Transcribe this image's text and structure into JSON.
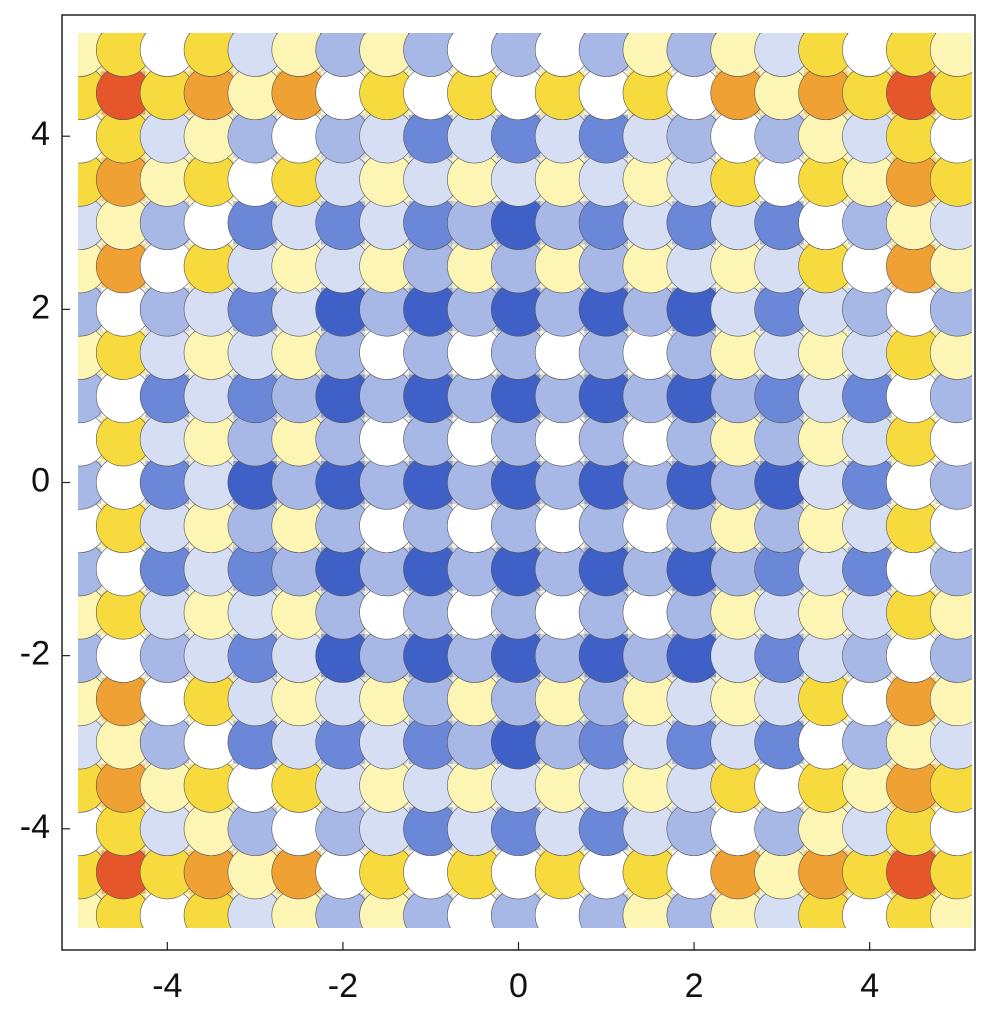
{
  "chart_data": {
    "type": "contour",
    "x": [
      -5,
      -4.5,
      -4,
      -3.5,
      -3,
      -2.5,
      -2,
      -1.5,
      -1,
      -0.5,
      0,
      0.5,
      1,
      1.5,
      2,
      2.5,
      3,
      3.5,
      4,
      4.5,
      5
    ],
    "y": [
      -5,
      -4.5,
      -4,
      -3.5,
      -3,
      -2.5,
      -2,
      -1.5,
      -1,
      -0.5,
      0,
      0.5,
      1,
      1.5,
      2,
      2.5,
      3,
      3.5,
      4,
      4.5,
      5
    ],
    "z": [
      [
        50,
        65.25,
        41,
        57.25,
        34,
        51.25,
        29,
        47.25,
        26,
        45.25,
        25,
        45.25,
        26,
        47.25,
        29,
        51.25,
        34,
        57.25,
        41,
        65.25,
        50
      ],
      [
        65.25,
        80.5,
        56.25,
        72.5,
        49.25,
        66.5,
        44.25,
        62.5,
        41.25,
        60.5,
        40.25,
        60.5,
        41.25,
        62.5,
        44.25,
        66.5,
        49.25,
        72.5,
        56.25,
        80.5,
        65.25
      ],
      [
        41,
        56.25,
        32,
        48.25,
        25,
        42.25,
        20,
        38.25,
        17,
        36.25,
        16,
        36.25,
        17,
        38.25,
        20,
        42.25,
        25,
        48.25,
        32,
        56.25,
        41
      ],
      [
        57.25,
        72.5,
        48.25,
        64.5,
        41.25,
        58.5,
        36.25,
        54.5,
        33.25,
        52.5,
        32.25,
        52.5,
        33.25,
        54.5,
        36.25,
        58.5,
        41.25,
        64.5,
        48.25,
        72.5,
        57.25
      ],
      [
        34,
        49.25,
        25,
        41.25,
        18,
        35.25,
        13,
        31.25,
        10,
        29.25,
        9,
        29.25,
        10,
        31.25,
        13,
        35.25,
        18,
        41.25,
        25,
        49.25,
        34
      ],
      [
        51.25,
        66.5,
        42.25,
        58.5,
        35.25,
        52.5,
        30.25,
        48.5,
        27.25,
        46.5,
        26.25,
        46.5,
        27.25,
        48.5,
        30.25,
        52.5,
        35.25,
        58.5,
        42.25,
        66.5,
        51.25
      ],
      [
        29,
        44.25,
        20,
        36.25,
        13,
        30.25,
        8,
        26.25,
        5,
        24.25,
        4,
        24.25,
        5,
        26.25,
        8,
        30.25,
        13,
        36.25,
        20,
        44.25,
        29
      ],
      [
        47.25,
        62.5,
        38.25,
        54.5,
        31.25,
        48.5,
        26.25,
        44.5,
        23.25,
        42.5,
        22.25,
        42.5,
        23.25,
        44.5,
        26.25,
        48.5,
        31.25,
        54.5,
        38.25,
        62.5,
        47.25
      ],
      [
        26,
        41.25,
        17,
        33.25,
        10,
        27.25,
        5,
        23.25,
        2,
        21.25,
        1,
        21.25,
        2,
        23.25,
        5,
        27.25,
        10,
        33.25,
        17,
        41.25,
        26
      ],
      [
        45.25,
        60.5,
        36.25,
        52.5,
        29.25,
        46.5,
        24.25,
        42.5,
        21.25,
        40.5,
        20.25,
        40.5,
        21.25,
        42.5,
        24.25,
        46.5,
        29.25,
        52.5,
        36.25,
        60.5,
        45.25
      ],
      [
        25,
        40.25,
        16,
        32.25,
        9,
        26.25,
        4,
        22.25,
        1,
        20.25,
        0,
        20.25,
        1,
        22.25,
        4,
        26.25,
        9,
        32.25,
        16,
        40.25,
        25
      ],
      [
        45.25,
        60.5,
        36.25,
        52.5,
        29.25,
        46.5,
        24.25,
        42.5,
        21.25,
        40.5,
        20.25,
        40.5,
        21.25,
        42.5,
        24.25,
        46.5,
        29.25,
        52.5,
        36.25,
        60.5,
        45.25
      ],
      [
        26,
        41.25,
        17,
        33.25,
        10,
        27.25,
        5,
        23.25,
        2,
        21.25,
        1,
        21.25,
        2,
        23.25,
        5,
        27.25,
        10,
        33.25,
        17,
        41.25,
        26
      ],
      [
        47.25,
        62.5,
        38.25,
        54.5,
        31.25,
        48.5,
        26.25,
        44.5,
        23.25,
        42.5,
        22.25,
        42.5,
        23.25,
        44.5,
        26.25,
        48.5,
        31.25,
        54.5,
        38.25,
        62.5,
        47.25
      ],
      [
        29,
        44.25,
        20,
        36.25,
        13,
        30.25,
        8,
        26.25,
        5,
        24.25,
        4,
        24.25,
        5,
        26.25,
        8,
        30.25,
        13,
        36.25,
        20,
        44.25,
        29
      ],
      [
        51.25,
        66.5,
        42.25,
        58.5,
        35.25,
        52.5,
        30.25,
        48.5,
        27.25,
        46.5,
        26.25,
        46.5,
        27.25,
        48.5,
        30.25,
        52.5,
        35.25,
        58.5,
        42.25,
        66.5,
        51.25
      ],
      [
        34,
        49.25,
        25,
        41.25,
        18,
        35.25,
        13,
        31.25,
        10,
        29.25,
        9,
        29.25,
        10,
        31.25,
        13,
        35.25,
        18,
        41.25,
        25,
        49.25,
        34
      ],
      [
        57.25,
        72.5,
        48.25,
        64.5,
        41.25,
        58.5,
        36.25,
        54.5,
        33.25,
        52.5,
        32.25,
        52.5,
        33.25,
        54.5,
        36.25,
        58.5,
        41.25,
        64.5,
        48.25,
        72.5,
        57.25
      ],
      [
        41,
        56.25,
        32,
        48.25,
        25,
        42.25,
        20,
        38.25,
        17,
        36.25,
        16,
        36.25,
        17,
        38.25,
        20,
        42.25,
        25,
        48.25,
        32,
        56.25,
        41
      ],
      [
        65.25,
        80.5,
        56.25,
        72.5,
        49.25,
        66.5,
        44.25,
        62.5,
        41.25,
        60.5,
        40.25,
        60.5,
        41.25,
        62.5,
        44.25,
        66.5,
        49.25,
        72.5,
        56.25,
        80.5,
        65.25
      ],
      [
        50,
        65.25,
        41,
        57.25,
        34,
        51.25,
        29,
        47.25,
        26,
        45.25,
        25,
        45.25,
        26,
        47.25,
        29,
        51.25,
        34,
        57.25,
        41,
        65.25,
        50
      ]
    ],
    "levels": [
      10,
      20,
      30,
      40,
      46,
      56,
      66,
      76
    ],
    "colors": [
      "#3f60c6",
      "#6b87d7",
      "#a7b8e7",
      "#d6def4",
      "#ffffff",
      "#fdf5b3",
      "#f6da3e",
      "#f0a133",
      "#e5572a"
    ],
    "xlim": [
      -5.2,
      5.2
    ],
    "ylim": [
      -5.4,
      5.4
    ],
    "xticks": [
      -4,
      -2,
      0,
      2,
      4
    ],
    "yticks": [
      -4,
      -2,
      0,
      2,
      4
    ]
  }
}
